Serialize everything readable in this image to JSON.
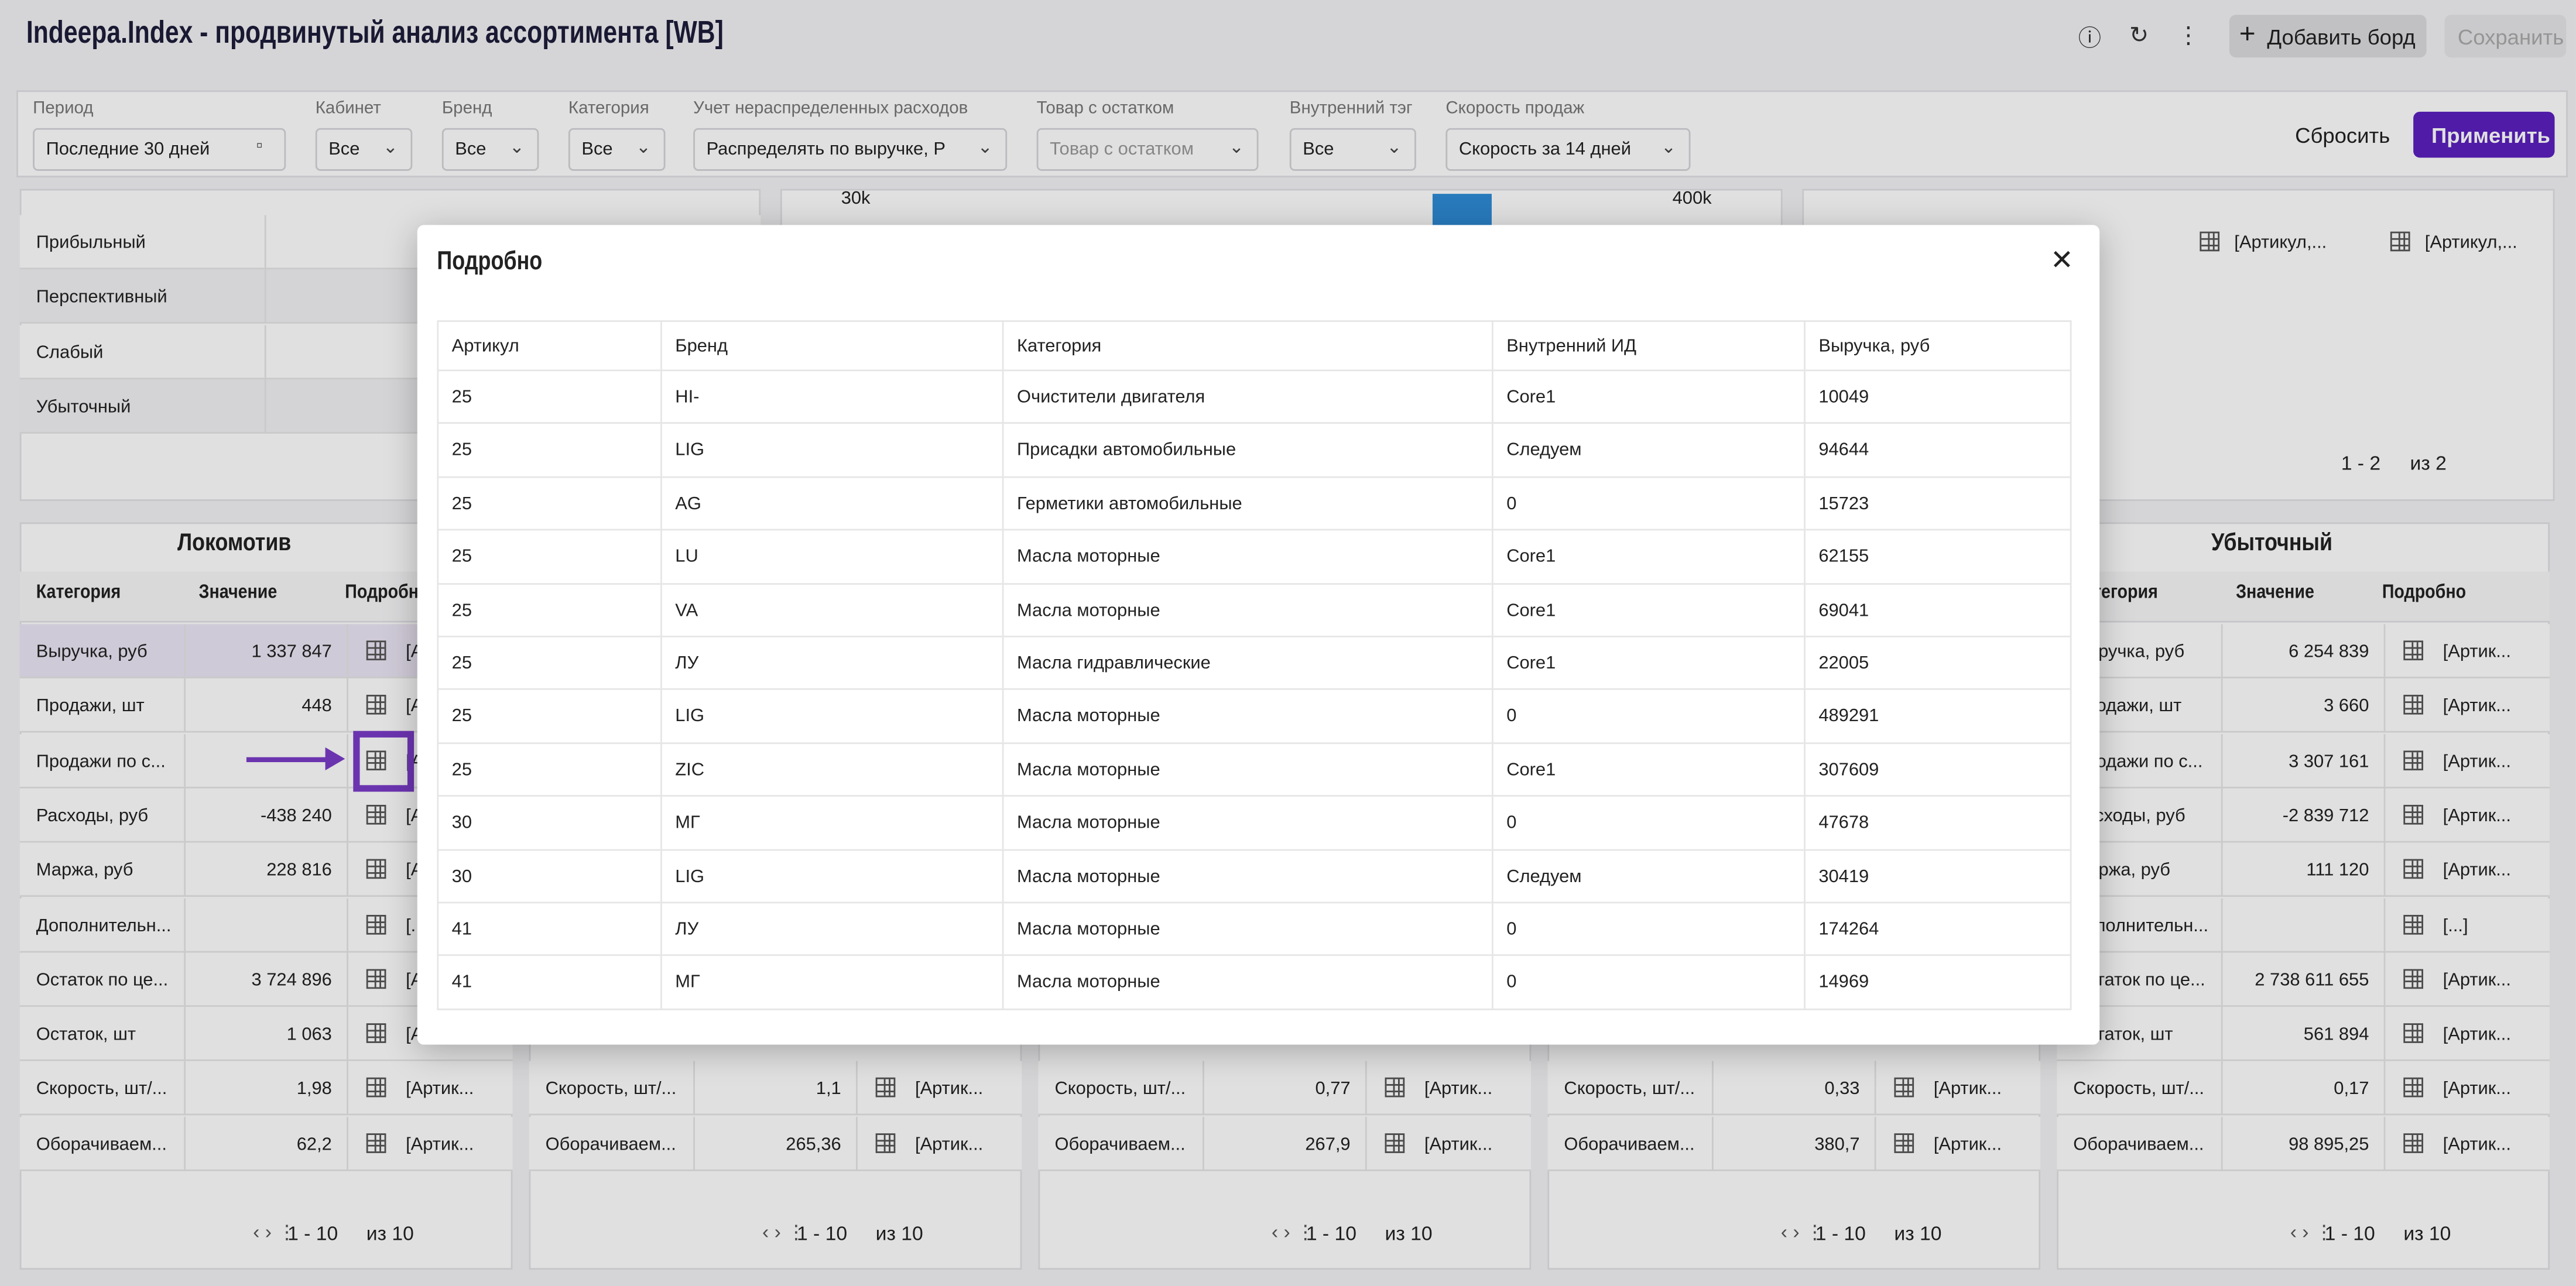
{
  "header": {
    "title": "Indeepa.Index - продвинутый анализ ассортимента [WB]",
    "actions": [
      "Добавить борд",
      "Сохранить"
    ]
  },
  "filters": [
    {
      "label": "Период",
      "value": "Последние 30 дней"
    },
    {
      "label": "Кабинет",
      "value": "Все"
    },
    {
      "label": "Бренд",
      "value": "Все"
    },
    {
      "label": "Категория",
      "value": "Все"
    },
    {
      "label": "Учет нераспределенных расходов",
      "value": "Распределять по выручке, Р"
    },
    {
      "label": "Товар с остатком",
      "value": "Товар с остатком"
    },
    {
      "label": "Внутренний тэг",
      "value": "Все"
    },
    {
      "label": "Скорость продаж",
      "value": "Скорость за 14 дней"
    }
  ],
  "filter_actions": [
    "Сбросить",
    "Применить"
  ],
  "top_left": {
    "rows": [
      "Прибыльный",
      "Перспективный",
      "Слабый",
      "Убыточный"
    ]
  },
  "chart": {
    "axis_labels": [
      "30k",
      "400k"
    ]
  },
  "top_right": {
    "cells": [
      "[Артикул,...",
      "[Артикул,..."
    ],
    "pagination": {
      "range": "1 - 2",
      "total": "из 2"
    }
  },
  "panels": [
    {
      "title": "Локомотив",
      "columns": [
        "Категория",
        "Значение",
        "Подробно"
      ],
      "rows": [
        {
          "category": "Выручка, руб",
          "value": "1 337 847",
          "details": "[Артик..."
        },
        {
          "category": "Продажи, шт",
          "value": "448",
          "details": "[Артик..."
        },
        {
          "category": "Продажи по с...",
          "details": "[Артик..."
        },
        {
          "category": "Расходы, руб",
          "value": "-438 240",
          "details": "[Артик..."
        },
        {
          "category": "Маржа, руб",
          "value": "228 816",
          "details": "[Артик..."
        },
        {
          "category": "Дополнительн...",
          "details": "[...]"
        },
        {
          "category": "Остаток по це...",
          "value": "3 724 896",
          "details": "[Артик..."
        },
        {
          "category": "Остаток, шт",
          "value": "1 063",
          "details": "[Артик..."
        },
        {
          "category": "Скорость, шт/...",
          "value": "1,98",
          "details": "[Артик..."
        },
        {
          "category": "Оборачиваем...",
          "value": "62,2",
          "details": "[Артик..."
        }
      ],
      "pagination": {
        "range": "1 - 10",
        "total": "из 10"
      }
    },
    {
      "rows": [
        {
          "category": "Скорость, шт/...",
          "value": "1,1",
          "details": "[Артик..."
        },
        {
          "category": "Оборачиваем...",
          "value": "265,36",
          "details": "[Артик..."
        }
      ],
      "pagination": {
        "range": "1 - 10",
        "total": "из 10"
      }
    },
    {
      "rows": [
        {
          "category": "Скорость, шт/...",
          "value": "0,77",
          "details": "[Артик..."
        },
        {
          "category": "Оборачиваем...",
          "value": "267,9",
          "details": "[Артик..."
        }
      ],
      "pagination": {
        "range": "1 - 10",
        "total": "из 10"
      }
    },
    {
      "rows": [
        {
          "category": "Скорость, шт/...",
          "value": "0,33",
          "details": "[Артик..."
        },
        {
          "category": "Оборачиваем...",
          "value": "380,7",
          "details": "[Артик..."
        }
      ],
      "pagination": {
        "range": "1 - 10",
        "total": "из 10"
      }
    },
    {
      "title": "Убыточный",
      "columns": [
        "Категория",
        "Значение",
        "Подробно"
      ],
      "rows": [
        {
          "category": "Выручка, руб",
          "value": "6 254 839",
          "details": "[Артик..."
        },
        {
          "category": "Продажи, шт",
          "value": "3 660",
          "details": "[Артик..."
        },
        {
          "category": "Продажи по с...",
          "value": "3 307 161",
          "details": "[Артик..."
        },
        {
          "category": "Расходы, руб",
          "value": "-2 839 712",
          "details": "[Артик..."
        },
        {
          "category": "Маржа, руб",
          "value": "111 120",
          "details": "[Артик..."
        },
        {
          "category": "Дополнительн...",
          "details": "[...]"
        },
        {
          "category": "Остаток по це...",
          "value": "2 738 611 655",
          "details": "[Артик..."
        },
        {
          "category": "Остаток, шт",
          "value": "561 894",
          "details": "[Артик..."
        },
        {
          "category": "Скорость, шт/...",
          "value": "0,17",
          "details": "[Артик..."
        },
        {
          "category": "Оборачиваем...",
          "value": "98 895,25",
          "details": "[Артик..."
        }
      ],
      "pagination": {
        "range": "1 - 10",
        "total": "из 10"
      }
    }
  ],
  "modal": {
    "title": "Подробно",
    "table": {
      "columns": [
        "Артикул",
        "Бренд",
        "Категория",
        "Внутренний ИД",
        "Выручка, руб"
      ],
      "rows": [
        [
          "25",
          "HI-",
          "Очистители двигателя",
          "Core1",
          "10049"
        ],
        [
          "25",
          "LIG",
          "Присадки автомобильные",
          "Следуем",
          "94644"
        ],
        [
          "25",
          "AG",
          "Герметики автомобильные",
          "0",
          "15723"
        ],
        [
          "25",
          "LU",
          "Масла моторные",
          "Core1",
          "62155"
        ],
        [
          "25",
          "VA",
          "Масла моторные",
          "Core1",
          "69041"
        ],
        [
          "25",
          "ЛУ",
          "Масла гидравлические",
          "Core1",
          "22005"
        ],
        [
          "25",
          "LIG",
          "Масла моторные",
          "0",
          "489291"
        ],
        [
          "25",
          "ZIC",
          "Масла моторные",
          "Core1",
          "307609"
        ],
        [
          "30",
          "MГ",
          "Масла моторные",
          "0",
          "47678"
        ],
        [
          "30",
          "LIG",
          "Масла моторные",
          "Следуем",
          "30419"
        ],
        [
          "41",
          "ЛУ",
          "Масла моторные",
          "0",
          "174264"
        ],
        [
          "41",
          "MГ",
          "Масла моторные",
          "0",
          "14969"
        ]
      ]
    }
  }
}
